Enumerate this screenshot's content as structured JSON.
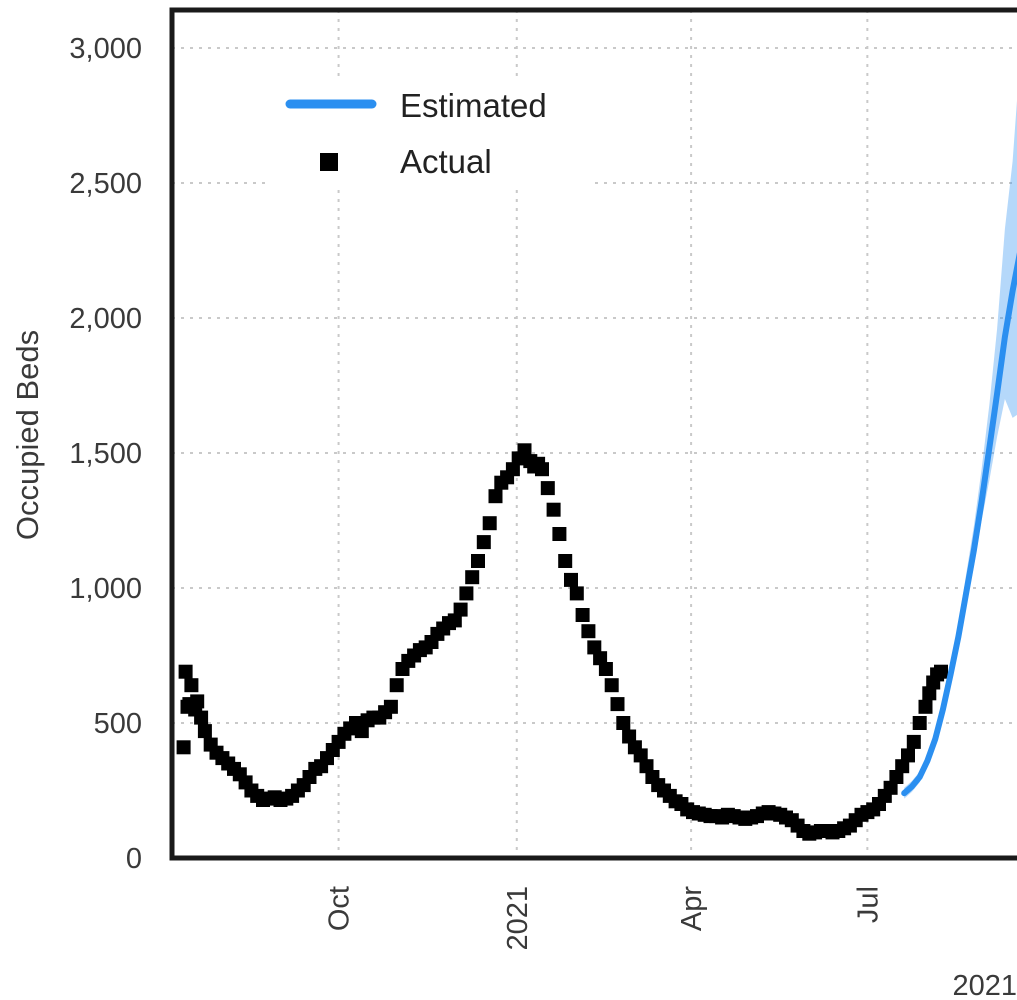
{
  "chart_data": {
    "type": "line",
    "ylabel": "Occupied Beds",
    "xlabel": "2021",
    "ylim": [
      0,
      3000
    ],
    "xlim": [
      "2020-07-07",
      "2021-09-24"
    ],
    "grid": true,
    "legend_placement": "top-left",
    "y_ticks": [
      {
        "value": 0,
        "label": "0"
      },
      {
        "value": 500,
        "label": "500"
      },
      {
        "value": 1000,
        "label": "1,000"
      },
      {
        "value": 1500,
        "label": "1,500"
      },
      {
        "value": 2000,
        "label": "2,000"
      },
      {
        "value": 2500,
        "label": "2,500"
      },
      {
        "value": 3000,
        "label": "3,000"
      }
    ],
    "x_ticks": [
      {
        "value": "2020-10-01",
        "label": "Oct"
      },
      {
        "value": "2021-01-01",
        "label": "2021"
      },
      {
        "value": "2021-04-01",
        "label": "Apr"
      },
      {
        "value": "2021-07-01",
        "label": "Jul"
      }
    ],
    "series": [
      {
        "name": "Actual",
        "kind": "points",
        "color": "#000000",
        "x": [
          "2020-07-13",
          "2020-07-14",
          "2020-07-15",
          "2020-07-16",
          "2020-07-17",
          "2020-07-19",
          "2020-07-20",
          "2020-07-22",
          "2020-07-24",
          "2020-07-27",
          "2020-07-30",
          "2020-08-02",
          "2020-08-05",
          "2020-08-08",
          "2020-08-11",
          "2020-08-14",
          "2020-08-17",
          "2020-08-20",
          "2020-08-23",
          "2020-08-26",
          "2020-08-29",
          "2020-09-01",
          "2020-09-04",
          "2020-09-07",
          "2020-09-10",
          "2020-09-13",
          "2020-09-16",
          "2020-09-19",
          "2020-09-22",
          "2020-09-25",
          "2020-09-28",
          "2020-10-01",
          "2020-10-04",
          "2020-10-07",
          "2020-10-10",
          "2020-10-13",
          "2020-10-16",
          "2020-10-19",
          "2020-10-22",
          "2020-10-25",
          "2020-10-28",
          "2020-10-31",
          "2020-11-03",
          "2020-11-06",
          "2020-11-09",
          "2020-11-12",
          "2020-11-15",
          "2020-11-18",
          "2020-11-21",
          "2020-11-24",
          "2020-11-27",
          "2020-11-30",
          "2020-12-03",
          "2020-12-06",
          "2020-12-09",
          "2020-12-12",
          "2020-12-15",
          "2020-12-18",
          "2020-12-21",
          "2020-12-24",
          "2020-12-27",
          "2020-12-30",
          "2021-01-02",
          "2021-01-05",
          "2021-01-08",
          "2021-01-10",
          "2021-01-12",
          "2021-01-14",
          "2021-01-17",
          "2021-01-20",
          "2021-01-23",
          "2021-01-26",
          "2021-01-29",
          "2021-02-01",
          "2021-02-04",
          "2021-02-07",
          "2021-02-10",
          "2021-02-13",
          "2021-02-16",
          "2021-02-19",
          "2021-02-22",
          "2021-02-25",
          "2021-02-28",
          "2021-03-03",
          "2021-03-06",
          "2021-03-09",
          "2021-03-12",
          "2021-03-15",
          "2021-03-18",
          "2021-03-21",
          "2021-03-24",
          "2021-03-27",
          "2021-03-30",
          "2021-04-02",
          "2021-04-05",
          "2021-04-08",
          "2021-04-11",
          "2021-04-14",
          "2021-04-17",
          "2021-04-20",
          "2021-04-23",
          "2021-04-26",
          "2021-04-29",
          "2021-05-02",
          "2021-05-05",
          "2021-05-08",
          "2021-05-11",
          "2021-05-14",
          "2021-05-17",
          "2021-05-20",
          "2021-05-23",
          "2021-05-26",
          "2021-05-29",
          "2021-06-01",
          "2021-06-04",
          "2021-06-07",
          "2021-06-10",
          "2021-06-13",
          "2021-06-16",
          "2021-06-19",
          "2021-06-22",
          "2021-06-25",
          "2021-06-28",
          "2021-07-01",
          "2021-07-04",
          "2021-07-07",
          "2021-07-10",
          "2021-07-13",
          "2021-07-16",
          "2021-07-19",
          "2021-07-22",
          "2021-07-25",
          "2021-07-28",
          "2021-07-31",
          "2021-08-02",
          "2021-08-04",
          "2021-08-06",
          "2021-08-08"
        ],
        "y": [
          410,
          690,
          560,
          570,
          640,
          550,
          580,
          520,
          470,
          420,
          390,
          370,
          350,
          330,
          310,
          280,
          250,
          230,
          215,
          220,
          225,
          215,
          220,
          230,
          250,
          270,
          300,
          330,
          340,
          370,
          400,
          430,
          460,
          480,
          500,
          470,
          510,
          520,
          520,
          540,
          560,
          640,
          700,
          730,
          750,
          770,
          780,
          800,
          830,
          850,
          870,
          880,
          920,
          980,
          1040,
          1100,
          1170,
          1240,
          1340,
          1390,
          1410,
          1440,
          1480,
          1510,
          1470,
          1450,
          1460,
          1440,
          1370,
          1290,
          1200,
          1100,
          1030,
          980,
          900,
          840,
          780,
          740,
          700,
          640,
          570,
          500,
          450,
          410,
          380,
          340,
          300,
          270,
          250,
          230,
          210,
          200,
          180,
          170,
          165,
          160,
          155,
          155,
          150,
          160,
          155,
          150,
          145,
          150,
          155,
          165,
          170,
          165,
          160,
          150,
          140,
          120,
          100,
          90,
          95,
          100,
          100,
          95,
          100,
          110,
          120,
          140,
          160,
          170,
          180,
          200,
          230,
          260,
          300,
          340,
          380,
          430,
          500,
          560,
          610,
          650,
          680,
          690
        ]
      },
      {
        "name": "Estimated",
        "kind": "line",
        "color": "#2b8ff0",
        "x": [
          "2021-07-20",
          "2021-07-24",
          "2021-07-28",
          "2021-08-01",
          "2021-08-05",
          "2021-08-09",
          "2021-08-13",
          "2021-08-17",
          "2021-08-21",
          "2021-08-25",
          "2021-08-29",
          "2021-09-02",
          "2021-09-06",
          "2021-09-10",
          "2021-09-14",
          "2021-09-18"
        ],
        "y": [
          240,
          265,
          300,
          360,
          440,
          550,
          680,
          820,
          980,
          1140,
          1320,
          1520,
          1720,
          1930,
          2100,
          2250
        ],
        "band_low": [
          220,
          245,
          280,
          340,
          420,
          520,
          640,
          780,
          930,
          1080,
          1250,
          1400,
          1560,
          1700,
          1630,
          1650
        ],
        "band_high": [
          260,
          285,
          320,
          380,
          460,
          580,
          720,
          870,
          1050,
          1230,
          1440,
          1680,
          1960,
          2330,
          2580,
          2980
        ]
      }
    ]
  }
}
